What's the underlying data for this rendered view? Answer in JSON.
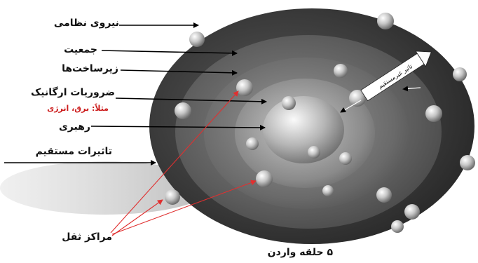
{
  "labels": {
    "strategic_forces": "نیروی نظامی",
    "population": "جمعیت",
    "infrastructure": "زیرساخت‌ها",
    "organic_essentials": "ضروریات ارگانیک",
    "organic_example": "مثلاً: برق، انرژی",
    "leadership": "رهبری",
    "direct_effects": "تاثیرات مستقیم",
    "centers_of_gravity": "مراکز ثقل",
    "indirect_effect": "تاثیر غیرمستقیم",
    "caption": "۵ حلقه واردن"
  },
  "colors": {
    "label_text": "#111111",
    "example_text": "#cc1b1b",
    "red_arrows": "#e03030",
    "pointer_lines": "#000000"
  }
}
